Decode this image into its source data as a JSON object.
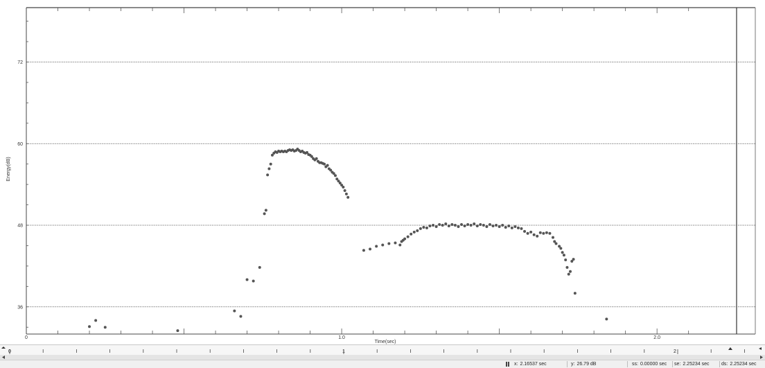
{
  "chart_data": {
    "type": "scatter",
    "title": "",
    "xlabel": "Time(sec)",
    "ylabel": "Energy(dB)",
    "xlim": [
      0,
      2.25234
    ],
    "ylim": [
      32.0,
      80.0
    ],
    "x_ticks": [
      0,
      1.0,
      2.0
    ],
    "x_tick_labels": [
      "0",
      "1.0",
      "2.0"
    ],
    "y_ticks": [
      36,
      48,
      60,
      72
    ],
    "y_tick_labels": [
      "36",
      "48",
      "60",
      "72"
    ],
    "grid": "horizontal dotted at labeled y ticks",
    "point_color": "#555555",
    "series": [
      {
        "values": [
          [
            0.2,
            33.1
          ],
          [
            0.22,
            34.0
          ],
          [
            0.25,
            33.0
          ],
          [
            0.48,
            32.5
          ],
          [
            0.66,
            35.4
          ],
          [
            0.68,
            34.6
          ],
          [
            0.7,
            40.0
          ],
          [
            0.72,
            39.8
          ],
          [
            0.74,
            41.8
          ],
          [
            0.755,
            49.7
          ],
          [
            0.76,
            50.2
          ],
          [
            0.765,
            55.4
          ],
          [
            0.77,
            56.3
          ],
          [
            0.775,
            57.0
          ],
          [
            0.78,
            58.3
          ],
          [
            0.785,
            58.6
          ],
          [
            0.79,
            58.8
          ],
          [
            0.795,
            58.7
          ],
          [
            0.8,
            58.9
          ],
          [
            0.805,
            58.8
          ],
          [
            0.81,
            58.9
          ],
          [
            0.815,
            58.8
          ],
          [
            0.82,
            58.9
          ],
          [
            0.825,
            58.8
          ],
          [
            0.83,
            59.0
          ],
          [
            0.835,
            59.1
          ],
          [
            0.84,
            59.0
          ],
          [
            0.845,
            59.1
          ],
          [
            0.85,
            58.9
          ],
          [
            0.855,
            59.0
          ],
          [
            0.86,
            59.2
          ],
          [
            0.865,
            59.0
          ],
          [
            0.87,
            58.8
          ],
          [
            0.875,
            58.9
          ],
          [
            0.88,
            58.7
          ],
          [
            0.885,
            58.6
          ],
          [
            0.89,
            58.7
          ],
          [
            0.895,
            58.4
          ],
          [
            0.9,
            58.3
          ],
          [
            0.905,
            58.1
          ],
          [
            0.91,
            57.8
          ],
          [
            0.915,
            57.6
          ],
          [
            0.92,
            57.8
          ],
          [
            0.925,
            57.4
          ],
          [
            0.93,
            57.2
          ],
          [
            0.935,
            57.2
          ],
          [
            0.94,
            57.1
          ],
          [
            0.945,
            57.0
          ],
          [
            0.95,
            56.6
          ],
          [
            0.955,
            56.8
          ],
          [
            0.96,
            56.3
          ],
          [
            0.965,
            56.1
          ],
          [
            0.97,
            55.8
          ],
          [
            0.975,
            55.6
          ],
          [
            0.98,
            55.3
          ],
          [
            0.985,
            54.8
          ],
          [
            0.99,
            54.5
          ],
          [
            0.995,
            54.2
          ],
          [
            1.0,
            53.9
          ],
          [
            1.005,
            53.6
          ],
          [
            1.01,
            53.1
          ],
          [
            1.015,
            52.6
          ],
          [
            1.02,
            52.1
          ],
          [
            1.07,
            44.3
          ],
          [
            1.09,
            44.5
          ],
          [
            1.11,
            44.9
          ],
          [
            1.13,
            45.1
          ],
          [
            1.15,
            45.3
          ],
          [
            1.17,
            45.4
          ],
          [
            1.185,
            45.1
          ],
          [
            1.19,
            45.6
          ],
          [
            1.195,
            45.8
          ],
          [
            1.2,
            46.0
          ],
          [
            1.21,
            46.3
          ],
          [
            1.22,
            46.7
          ],
          [
            1.23,
            47.0
          ],
          [
            1.24,
            47.2
          ],
          [
            1.25,
            47.5
          ],
          [
            1.26,
            47.7
          ],
          [
            1.27,
            47.6
          ],
          [
            1.28,
            47.9
          ],
          [
            1.29,
            48.0
          ],
          [
            1.3,
            47.8
          ],
          [
            1.31,
            48.1
          ],
          [
            1.32,
            48.0
          ],
          [
            1.33,
            48.2
          ],
          [
            1.34,
            47.9
          ],
          [
            1.35,
            48.1
          ],
          [
            1.36,
            48.0
          ],
          [
            1.37,
            47.8
          ],
          [
            1.38,
            48.1
          ],
          [
            1.39,
            47.9
          ],
          [
            1.4,
            48.1
          ],
          [
            1.41,
            48.0
          ],
          [
            1.42,
            48.2
          ],
          [
            1.43,
            47.9
          ],
          [
            1.44,
            48.1
          ],
          [
            1.45,
            48.0
          ],
          [
            1.46,
            47.8
          ],
          [
            1.47,
            48.1
          ],
          [
            1.48,
            47.9
          ],
          [
            1.49,
            48.0
          ],
          [
            1.5,
            47.8
          ],
          [
            1.51,
            48.0
          ],
          [
            1.52,
            47.7
          ],
          [
            1.53,
            47.9
          ],
          [
            1.54,
            47.6
          ],
          [
            1.55,
            47.8
          ],
          [
            1.56,
            47.6
          ],
          [
            1.57,
            47.5
          ],
          [
            1.58,
            47.1
          ],
          [
            1.59,
            46.8
          ],
          [
            1.6,
            47.0
          ],
          [
            1.61,
            46.6
          ],
          [
            1.62,
            46.4
          ],
          [
            1.63,
            46.9
          ],
          [
            1.64,
            46.8
          ],
          [
            1.65,
            46.9
          ],
          [
            1.66,
            46.8
          ],
          [
            1.67,
            46.2
          ],
          [
            1.675,
            45.6
          ],
          [
            1.68,
            45.3
          ],
          [
            1.69,
            44.9
          ],
          [
            1.695,
            44.6
          ],
          [
            1.7,
            44.0
          ],
          [
            1.705,
            43.6
          ],
          [
            1.71,
            42.9
          ],
          [
            1.715,
            41.8
          ],
          [
            1.72,
            40.8
          ],
          [
            1.725,
            41.2
          ],
          [
            1.73,
            42.7
          ],
          [
            1.735,
            43.0
          ],
          [
            1.74,
            38.0
          ],
          [
            1.84,
            34.2
          ]
        ]
      }
    ]
  },
  "timeline": {
    "labels": [
      "0",
      "1",
      "2"
    ]
  },
  "status": {
    "x_key": "x:",
    "x_value": "2.16537 sec",
    "y_key": "y:",
    "y_value": "26.79 dB",
    "ss_key": "ss:",
    "ss_value": "0.00000 sec",
    "se_key": "se:",
    "se_value": "2.25234 sec",
    "ds_key": "ds:",
    "ds_value": "2.25234 sec"
  }
}
